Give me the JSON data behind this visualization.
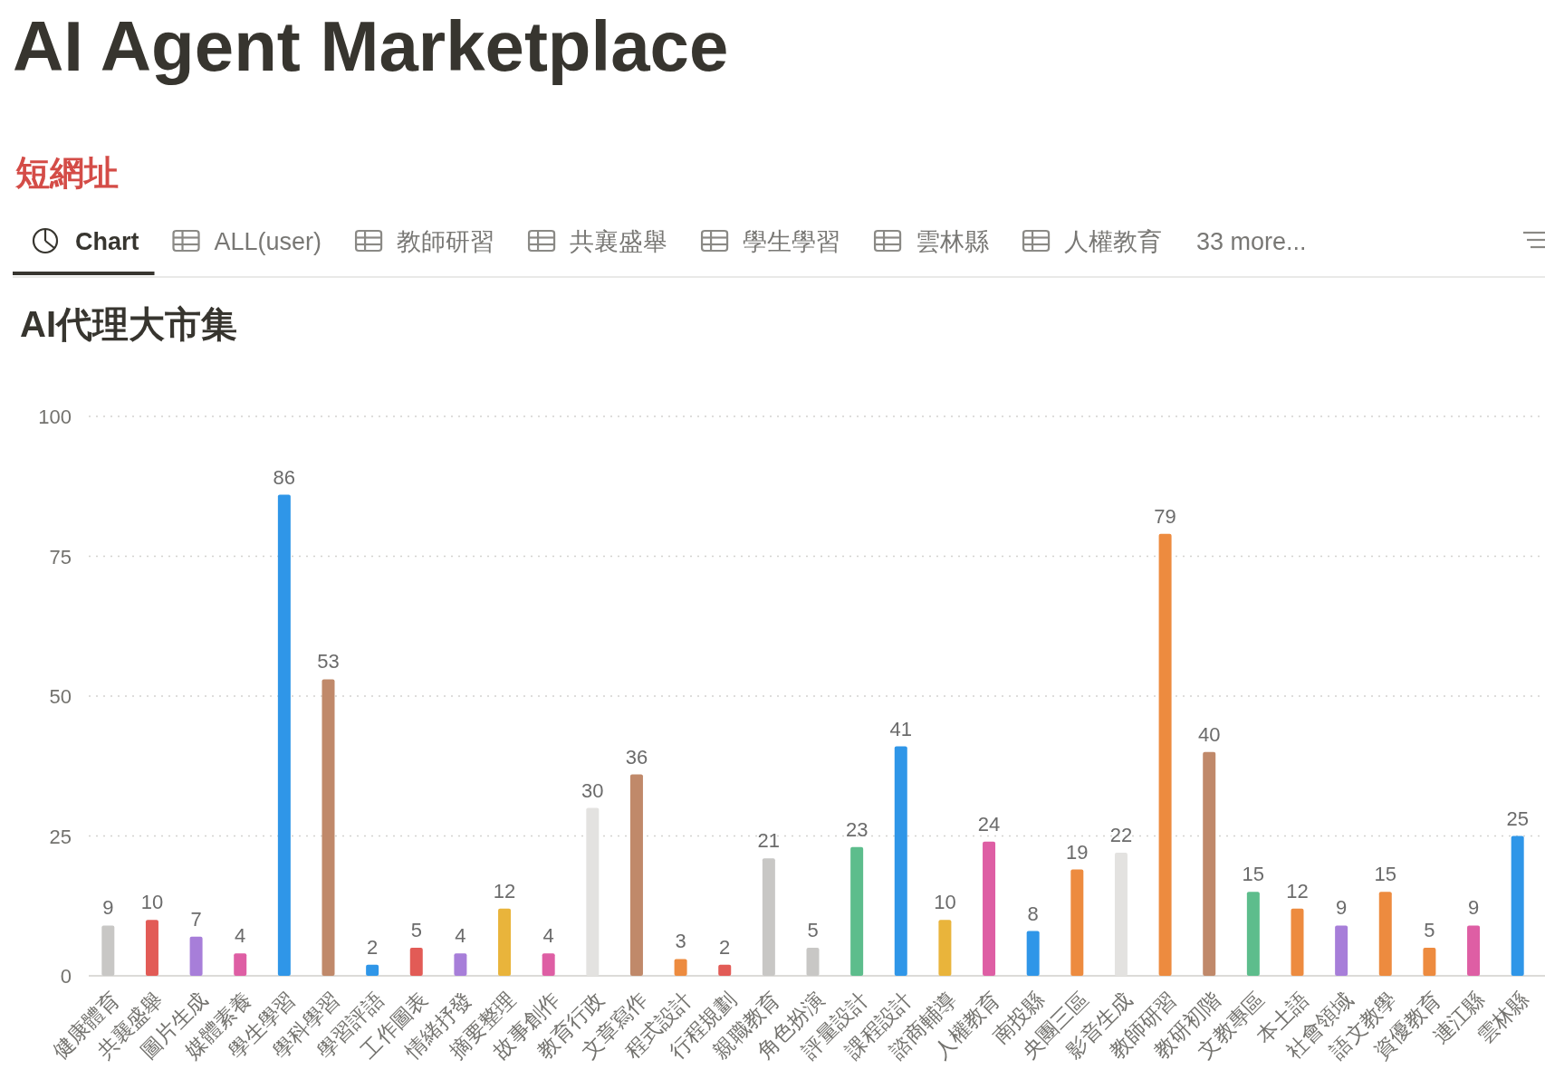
{
  "chart_data": {
    "type": "bar",
    "title": "AI代理大市集",
    "annotations": [
      "AI Agent Marketplace",
      "短網址",
      "Chart",
      "ALL(user)",
      "教師研習",
      "共襄盛舉",
      "學生學習",
      "雲林縣",
      "人權教育",
      "33 more..."
    ],
    "categories": [
      "健康體育",
      "共襄盛舉",
      "圖片生成",
      "媒體素養",
      "學生學習",
      "學科學習",
      "學習評語",
      "工作圖表",
      "情緒抒發",
      "摘要整理",
      "故事創作",
      "教育行政",
      "文章寫作",
      "程式設計",
      "行程規劃",
      "親職教育",
      "角色扮演",
      "評量設計",
      "課程設計",
      "諮商輔導",
      "人權教育",
      "南投縣",
      "央團三區",
      "影音生成",
      "教師研習",
      "教研初階",
      "文教專區",
      "本土語",
      "社會領域",
      "語文教學",
      "資優教育",
      "連江縣",
      "雲林縣"
    ],
    "values": [
      9,
      10,
      7,
      4,
      86,
      53,
      2,
      5,
      4,
      12,
      4,
      30,
      36,
      3,
      2,
      21,
      5,
      23,
      41,
      10,
      24,
      8,
      19,
      22,
      79,
      40,
      15,
      12,
      9,
      15,
      5,
      9,
      25
    ],
    "colors": [
      "#c8c7c5",
      "#e25b56",
      "#a77ed9",
      "#de5ea4",
      "#2f96e8",
      "#c0896a",
      "#2f96e8",
      "#e25b56",
      "#a77ed9",
      "#e9b43b",
      "#de5ea4",
      "#e3e2e0",
      "#c0896a",
      "#ed8b3f",
      "#e25b56",
      "#c8c7c5",
      "#c8c7c5",
      "#5dbd8c",
      "#2f96e8",
      "#e9b43b",
      "#de5ea4",
      "#2f96e8",
      "#ed8b3f",
      "#e3e2e0",
      "#ed8b3f",
      "#c0896a",
      "#5dbd8c",
      "#ed8b3f",
      "#a77ed9",
      "#ed8b3f",
      "#ed8b3f",
      "#de5ea4",
      "#2f96e8"
    ],
    "ylim": [
      0,
      100
    ],
    "yticks": [
      0,
      25,
      50,
      75,
      100
    ],
    "grid": "y",
    "data_labels": true
  }
}
